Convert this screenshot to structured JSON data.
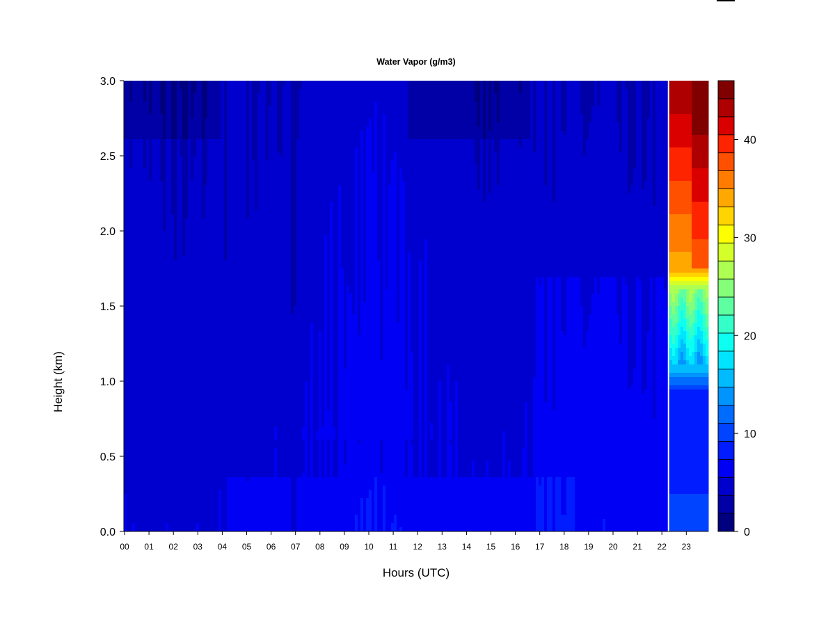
{
  "chart_data": {
    "type": "heatmap",
    "title": "Water Vapor (g/m3)",
    "xlabel": "Hours (UTC)",
    "ylabel": "Height (km)",
    "x_ticks": [
      "00",
      "01",
      "02",
      "03",
      "04",
      "05",
      "06",
      "07",
      "08",
      "09",
      "10",
      "11",
      "12",
      "13",
      "14",
      "15",
      "16",
      "17",
      "18",
      "19",
      "20",
      "21",
      "22",
      "23"
    ],
    "y_ticks": [
      "0.0",
      "0.5",
      "1.0",
      "1.5",
      "2.0",
      "2.5",
      "3.0"
    ],
    "y_range": [
      0,
      3.0
    ],
    "x_range": [
      0,
      23.9
    ],
    "colorbar": {
      "ticks": [
        "0",
        "10",
        "20",
        "30",
        "40"
      ],
      "range": [
        0,
        46
      ],
      "levels": 23,
      "colors": [
        "#00007F",
        "#0000A6",
        "#0000CE",
        "#0000F5",
        "#001CFF",
        "#0044FF",
        "#006CFF",
        "#0094FF",
        "#00BCFF",
        "#00E4FF",
        "#0DFFF1",
        "#35FFC9",
        "#5DFFA1",
        "#85FF79",
        "#ADFF51",
        "#D5FF29",
        "#FDFF00",
        "#FFD400",
        "#FFA800",
        "#FF7C00",
        "#FF5000",
        "#FF2400",
        "#DB0000",
        "#AE0000",
        "#800000"
      ]
    },
    "field_description": {
      "00_to_22.3": "mostly 2-8 g/m3 (dark to medium blue), lowest aloft",
      "22.3_to_24": "0-1 km ~8-10, 1-1.6 km 14-24 (cyan/green), 1.6-3 km 30-46 (orange/red)"
    }
  }
}
